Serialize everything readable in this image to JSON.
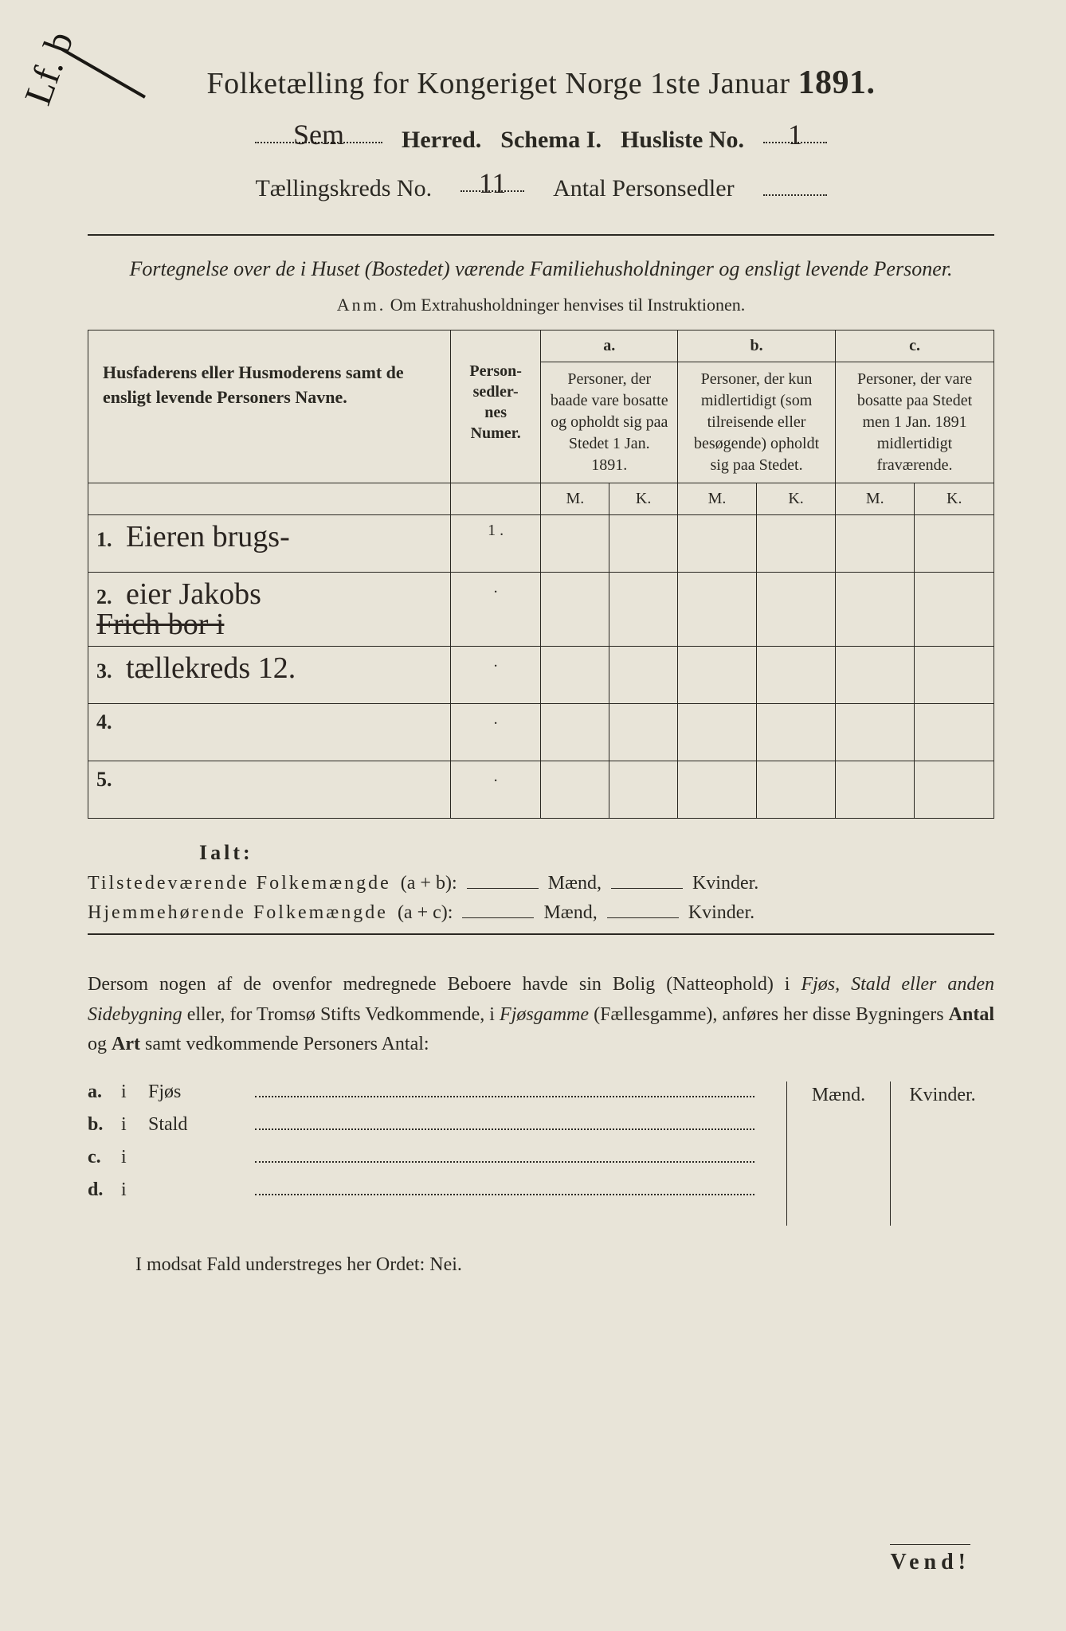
{
  "title": {
    "main_prefix": "Folketælling for Kongeriget Norge 1ste Januar",
    "year": "1891."
  },
  "header": {
    "herred_value": "Sem",
    "herred_label": "Herred.",
    "schema_label": "Schema I.",
    "husliste_label": "Husliste No.",
    "husliste_value": "1",
    "kreds_label": "Tællingskreds No.",
    "kreds_value": "11",
    "antal_label": "Antal Personsedler",
    "antal_value": ""
  },
  "margin_note": "Lf. b",
  "subtitle": "Fortegnelse over de i Huset (Bostedet) værende Familiehusholdninger og ensligt levende Personer.",
  "anm": {
    "label": "Anm.",
    "text": "Om Extrahusholdninger henvises til Instruktionen."
  },
  "table": {
    "col_names": "Husfaderens eller Husmoderens samt de ensligt levende Personers Navne.",
    "col_personsedler": "Person-sedler-nes Numer.",
    "col_a_letter": "a.",
    "col_a": "Personer, der baade vare bosatte og opholdt sig paa Stedet 1 Jan. 1891.",
    "col_b_letter": "b.",
    "col_b": "Personer, der kun midlertidigt (som tilreisende eller besøgende) opholdt sig paa Stedet.",
    "col_c_letter": "c.",
    "col_c": "Personer, der vare bosatte paa Stedet men 1 Jan. 1891 midlertidigt fraværende.",
    "m": "M.",
    "k": "K.",
    "rows": [
      {
        "num": "1.",
        "name": "Eieren brugs-",
        "pnum": "1"
      },
      {
        "num": "2.",
        "name": "eier Jakobs",
        "pnum": ""
      },
      {
        "num_blank": "",
        "name_strike": "Frich bor i",
        "pnum": ""
      },
      {
        "num": "3.",
        "name": "tællekreds 12.",
        "pnum": ""
      },
      {
        "num": "4.",
        "name": "",
        "pnum": ""
      },
      {
        "num": "5.",
        "name": "",
        "pnum": ""
      }
    ]
  },
  "ialt": "Ialt:",
  "sums": {
    "line1_label": "Tilstedeværende Folkemængde",
    "line1_formula": "(a + b):",
    "line2_label": "Hjemmehørende Folkemængde",
    "line2_formula": "(a + c):",
    "maend": "Mænd,",
    "kvinder": "Kvinder."
  },
  "paragraph": {
    "p1": "Dersom nogen af de ovenfor medregnede Beboere havde sin Bolig (Natteophold) i ",
    "em1": "Fjøs, Stald eller anden Sidebygning",
    "p2": " eller, for Tromsø Stifts Vedkommende, i ",
    "em2": "Fjøsgamme",
    "p3": " (Fællesgamme), anføres her disse Bygningers ",
    "b1": "Antal",
    "p4": " og ",
    "b2": "Art",
    "p5": " samt vedkommende Personers Antal:"
  },
  "outbuildings": {
    "maend": "Mænd.",
    "kvinder": "Kvinder.",
    "rows": [
      {
        "letter": "a.",
        "i": "i",
        "name": "Fjøs"
      },
      {
        "letter": "b.",
        "i": "i",
        "name": "Stald"
      },
      {
        "letter": "c.",
        "i": "i",
        "name": ""
      },
      {
        "letter": "d.",
        "i": "i",
        "name": ""
      }
    ]
  },
  "nei_line": "I modsat Fald understreges her Ordet: Nei.",
  "vend": "Vend!"
}
